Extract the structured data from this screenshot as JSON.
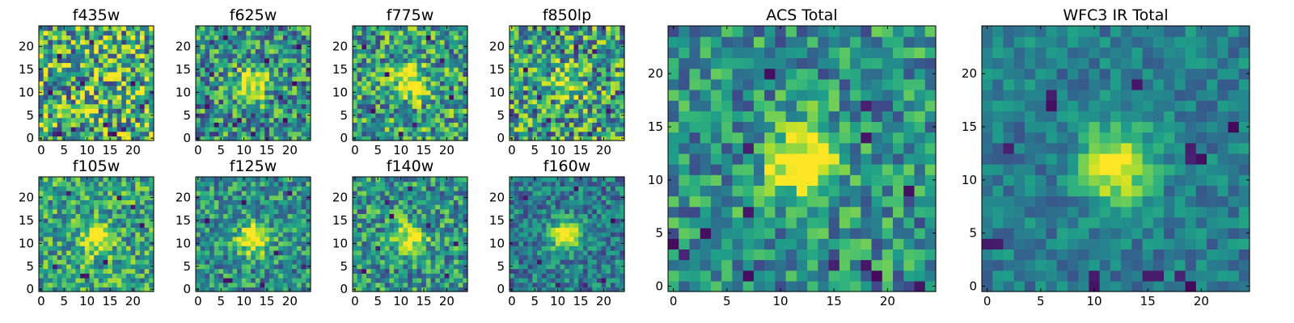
{
  "colormap": {
    "name": "viridis",
    "stops": [
      "#440154",
      "#482878",
      "#3e4989",
      "#31688e",
      "#26828e",
      "#1f9e89",
      "#35b779",
      "#6ece58",
      "#b5de2b",
      "#fde725"
    ]
  },
  "chart_data": [
    {
      "type": "heatmap",
      "title": "f435w",
      "grid": [
        25,
        25
      ],
      "xticks": [
        "0",
        "5",
        "10",
        "15",
        "20"
      ],
      "yticks": [
        "0",
        "5",
        "10",
        "15",
        "20"
      ],
      "xlim": [
        0,
        24
      ],
      "ylim": [
        0,
        24
      ],
      "source_center": null,
      "source_strength": 0.0,
      "noise": 0.55,
      "background": 0.62,
      "dark_pixels": [
        [
          3,
          1
        ],
        [
          4,
          1
        ],
        [
          7,
          2
        ],
        [
          15,
          1
        ],
        [
          16,
          1
        ],
        [
          18,
          2
        ],
        [
          2,
          10
        ],
        [
          9,
          12
        ],
        [
          14,
          3
        ],
        [
          20,
          12
        ],
        [
          4,
          18
        ],
        [
          11,
          21
        ],
        [
          22,
          7
        ]
      ]
    },
    {
      "type": "heatmap",
      "title": "f625w",
      "grid": [
        25,
        25
      ],
      "xticks": [
        "0",
        "5",
        "10",
        "15",
        "20"
      ],
      "yticks": [
        "0",
        "5",
        "10",
        "15",
        "20"
      ],
      "xlim": [
        0,
        24
      ],
      "ylim": [
        0,
        24
      ],
      "source_center": [
        12,
        12
      ],
      "source_strength": 0.55,
      "noise": 0.45,
      "background": 0.5,
      "dark_pixels": [
        [
          4,
          3
        ],
        [
          8,
          3
        ],
        [
          9,
          4
        ],
        [
          19,
          4
        ],
        [
          21,
          12
        ],
        [
          3,
          14
        ],
        [
          15,
          17
        ],
        [
          22,
          20
        ],
        [
          6,
          22
        ],
        [
          12,
          1
        ],
        [
          18,
          9
        ],
        [
          2,
          7
        ]
      ]
    },
    {
      "type": "heatmap",
      "title": "f775w",
      "grid": [
        25,
        25
      ],
      "xticks": [
        "0",
        "5",
        "10",
        "15",
        "20"
      ],
      "yticks": [
        "0",
        "5",
        "10",
        "15",
        "20"
      ],
      "xlim": [
        0,
        24
      ],
      "ylim": [
        0,
        24
      ],
      "source_center": [
        12,
        12
      ],
      "source_strength": 0.55,
      "noise": 0.45,
      "background": 0.55,
      "dark_pixels": [
        [
          19,
          17
        ],
        [
          4,
          6
        ],
        [
          13,
          3
        ],
        [
          21,
          9
        ],
        [
          7,
          14
        ],
        [
          2,
          20
        ],
        [
          16,
          22
        ],
        [
          10,
          1
        ]
      ]
    },
    {
      "type": "heatmap",
      "title": "f850lp",
      "grid": [
        25,
        25
      ],
      "xticks": [
        "0",
        "5",
        "10",
        "15",
        "20"
      ],
      "yticks": [
        "0",
        "5",
        "10",
        "15",
        "20"
      ],
      "xlim": [
        0,
        24
      ],
      "ylim": [
        0,
        24
      ],
      "source_center": [
        12,
        12
      ],
      "source_strength": 0.45,
      "noise": 0.5,
      "background": 0.55,
      "dark_pixels": [
        [
          18,
          19
        ],
        [
          3,
          15
        ],
        [
          8,
          4
        ],
        [
          14,
          20
        ],
        [
          21,
          6
        ],
        [
          6,
          9
        ],
        [
          17,
          1
        ],
        [
          10,
          23
        ]
      ]
    },
    {
      "type": "heatmap",
      "title": "f105w",
      "grid": [
        25,
        25
      ],
      "xticks": [
        "0",
        "5",
        "10",
        "15",
        "20"
      ],
      "yticks": [
        "0",
        "5",
        "10",
        "15",
        "20"
      ],
      "xlim": [
        0,
        24
      ],
      "ylim": [
        0,
        24
      ],
      "source_center": [
        12,
        11
      ],
      "source_strength": 0.5,
      "noise": 0.38,
      "background": 0.58,
      "dark_pixels": [
        [
          9,
          3
        ],
        [
          10,
          3
        ],
        [
          3,
          5
        ],
        [
          17,
          20
        ],
        [
          20,
          18
        ],
        [
          6,
          21
        ],
        [
          22,
          14
        ],
        [
          14,
          6
        ]
      ]
    },
    {
      "type": "heatmap",
      "title": "f125w",
      "grid": [
        25,
        25
      ],
      "xticks": [
        "0",
        "5",
        "10",
        "15",
        "20"
      ],
      "yticks": [
        "0",
        "5",
        "10",
        "15",
        "20"
      ],
      "xlim": [
        0,
        24
      ],
      "ylim": [
        0,
        24
      ],
      "source_center": [
        12,
        11
      ],
      "source_strength": 0.55,
      "noise": 0.35,
      "background": 0.5,
      "dark_pixels": [
        [
          6,
          2
        ],
        [
          7,
          2
        ],
        [
          2,
          15
        ],
        [
          17,
          8
        ],
        [
          20,
          21
        ],
        [
          10,
          19
        ],
        [
          14,
          1
        ],
        [
          23,
          5
        ]
      ]
    },
    {
      "type": "heatmap",
      "title": "f140w",
      "grid": [
        25,
        25
      ],
      "xticks": [
        "0",
        "5",
        "10",
        "15",
        "20"
      ],
      "yticks": [
        "0",
        "5",
        "10",
        "15",
        "20"
      ],
      "xlim": [
        0,
        24
      ],
      "ylim": [
        0,
        24
      ],
      "source_center": [
        12,
        11
      ],
      "source_strength": 0.55,
      "noise": 0.38,
      "background": 0.52,
      "dark_pixels": [
        [
          7,
          19
        ],
        [
          8,
          16
        ],
        [
          16,
          14
        ],
        [
          2,
          4
        ],
        [
          20,
          3
        ],
        [
          12,
          22
        ],
        [
          22,
          10
        ],
        [
          5,
          9
        ]
      ]
    },
    {
      "type": "heatmap",
      "title": "f160w",
      "grid": [
        25,
        25
      ],
      "xticks": [
        "0",
        "5",
        "10",
        "15",
        "20"
      ],
      "yticks": [
        "0",
        "5",
        "10",
        "15",
        "20"
      ],
      "xlim": [
        0,
        24
      ],
      "ylim": [
        0,
        24
      ],
      "source_center": [
        12,
        12
      ],
      "source_strength": 0.65,
      "noise": 0.3,
      "background": 0.42,
      "dark_pixels": [
        [
          10,
          1
        ],
        [
          16,
          1
        ],
        [
          20,
          2
        ],
        [
          3,
          20
        ],
        [
          14,
          22
        ],
        [
          22,
          15
        ],
        [
          6,
          6
        ]
      ]
    },
    {
      "type": "heatmap",
      "title": "ACS Total",
      "grid": [
        25,
        25
      ],
      "xticks": [
        "0",
        "5",
        "10",
        "15",
        "20"
      ],
      "yticks": [
        "0",
        "5",
        "10",
        "15",
        "20"
      ],
      "xlim": [
        0,
        24
      ],
      "ylim": [
        0,
        24
      ],
      "source_center": [
        12,
        12
      ],
      "source_strength": 0.6,
      "noise": 0.35,
      "background": 0.5,
      "dark_pixels": [
        [
          9,
          20
        ],
        [
          18,
          17
        ],
        [
          18,
          14
        ],
        [
          7,
          13
        ],
        [
          7,
          7
        ],
        [
          0,
          4
        ],
        [
          1,
          3
        ],
        [
          18,
          2
        ],
        [
          19,
          1
        ],
        [
          15,
          2
        ],
        [
          7,
          1
        ],
        [
          23,
          0
        ],
        [
          3,
          5
        ],
        [
          22,
          9
        ]
      ]
    },
    {
      "type": "heatmap",
      "title": "WFC3 IR Total",
      "grid": [
        25,
        25
      ],
      "xticks": [
        "0",
        "5",
        "10",
        "15",
        "20"
      ],
      "yticks": [
        "0",
        "5",
        "10",
        "15",
        "20"
      ],
      "xlim": [
        0,
        24
      ],
      "ylim": [
        0,
        24
      ],
      "source_center": [
        12,
        11.5
      ],
      "source_strength": 0.65,
      "noise": 0.2,
      "background": 0.42,
      "dark_pixels": [
        [
          6,
          18
        ],
        [
          6,
          17
        ],
        [
          19,
          12
        ],
        [
          19,
          13
        ],
        [
          20,
          12
        ],
        [
          0,
          4
        ],
        [
          1,
          4
        ],
        [
          10,
          0
        ],
        [
          10,
          1
        ],
        [
          15,
          1
        ],
        [
          16,
          1
        ],
        [
          18,
          1
        ],
        [
          19,
          0
        ],
        [
          14,
          19
        ],
        [
          23,
          15
        ],
        [
          2,
          13
        ]
      ]
    }
  ]
}
